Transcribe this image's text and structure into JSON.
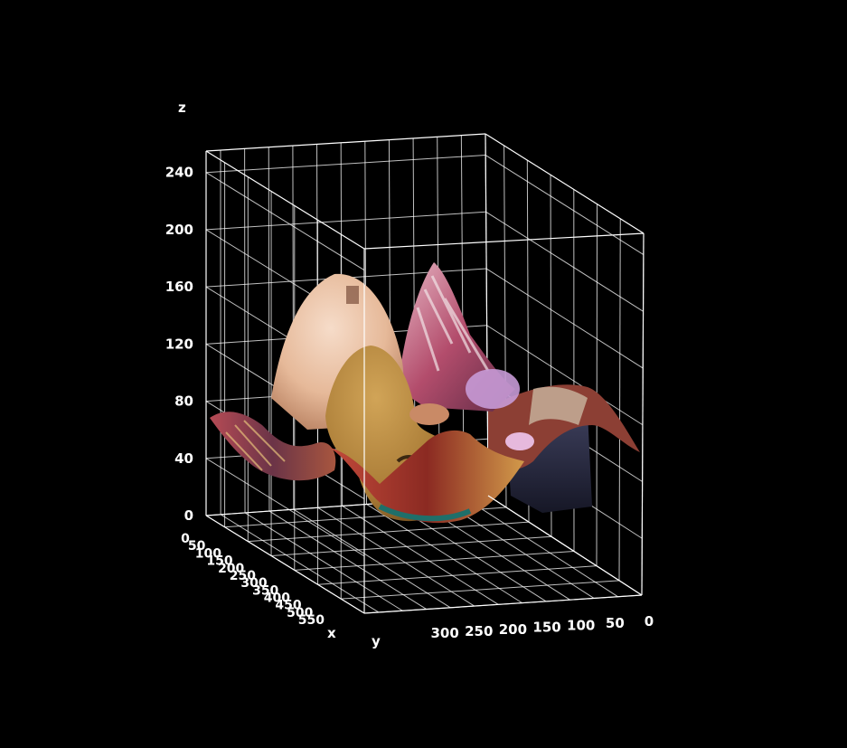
{
  "chart_data": {
    "type": "surface",
    "title": "",
    "xlabel": "x",
    "ylabel": "y",
    "zlabel": "z",
    "x_ticks": [
      0,
      50,
      100,
      150,
      200,
      250,
      300,
      350,
      400,
      450,
      500,
      550
    ],
    "y_ticks": [
      0,
      50,
      100,
      150,
      200,
      250,
      300
    ],
    "z_ticks": [
      0,
      40,
      80,
      120,
      160,
      200,
      240
    ],
    "xlim": [
      0,
      580
    ],
    "ylim": [
      0,
      340
    ],
    "zlim": [
      0,
      255
    ],
    "grid": true,
    "texture": "photo-mapped surface (guitar player in patterned clothing)",
    "surface_colors": {
      "skin": "#e9c3a6",
      "guitar": "#b58a3d",
      "red_fabric": "#a83a2c",
      "pink": "#c9607a",
      "navy": "#23263c",
      "grid": "#ffffff",
      "background": "#000000"
    }
  }
}
